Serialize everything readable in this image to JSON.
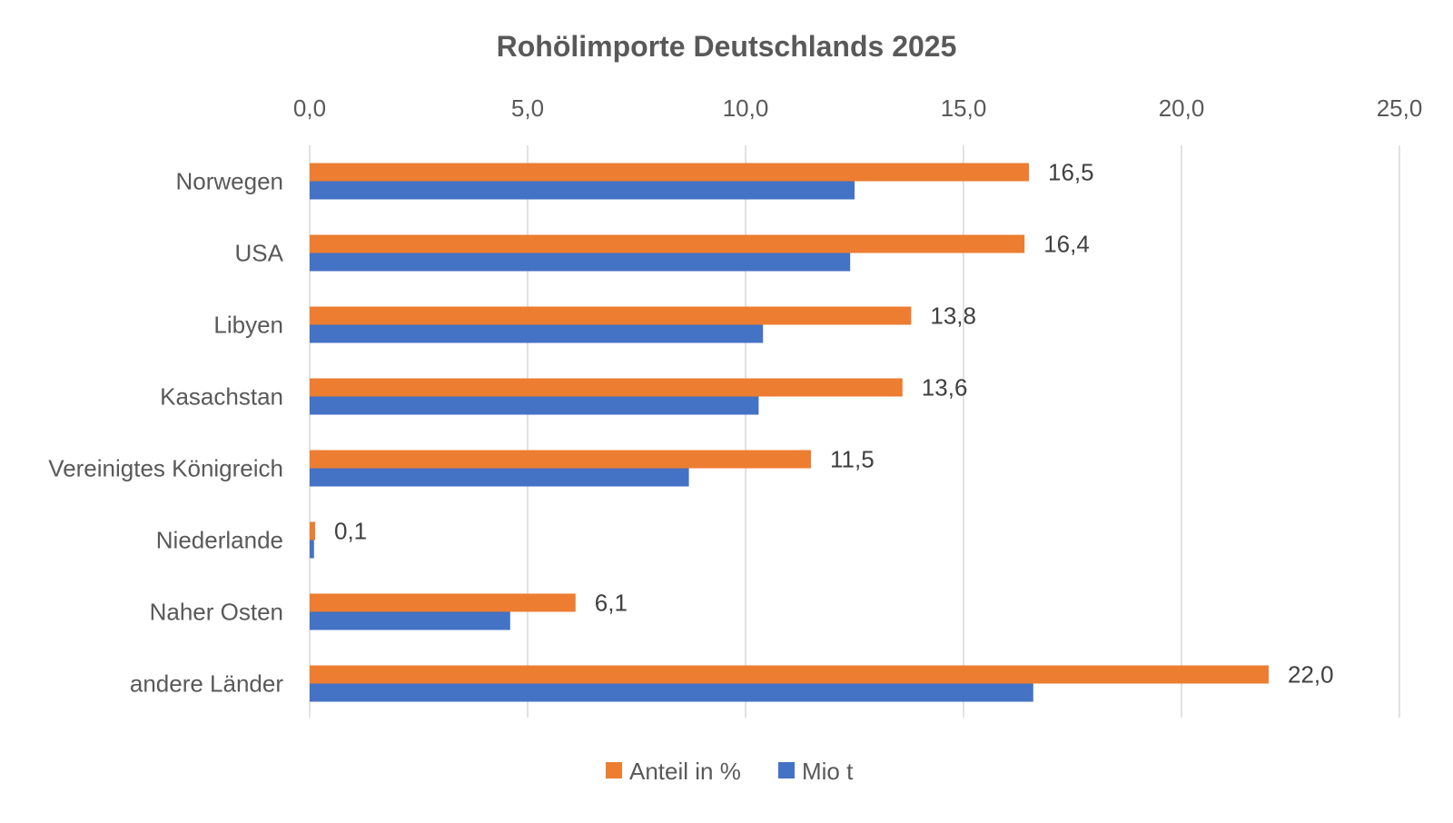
{
  "chart_data": {
    "type": "bar",
    "orientation": "horizontal",
    "title": "Rohölimporte Deutschlands 2025",
    "categories": [
      "Norwegen",
      "USA",
      "Libyen",
      "Kasachstan",
      "Vereinigtes Königreich",
      "Niederlande",
      "Naher Osten",
      "andere Länder"
    ],
    "series": [
      {
        "name": "Anteil in %",
        "color": "#ED7D31",
        "values": [
          16.5,
          16.4,
          13.8,
          13.6,
          11.5,
          0.1,
          6.1,
          22.0
        ],
        "data_labels": [
          "16,5",
          "16,4",
          "13,8",
          "13,6",
          "11,5",
          "0,1",
          "6,1",
          "22,0"
        ]
      },
      {
        "name": "Mio t",
        "color": "#4472C4",
        "values": [
          12.5,
          12.4,
          10.4,
          10.3,
          8.7,
          0.1,
          4.6,
          16.6
        ]
      }
    ],
    "x_axis": {
      "min": 0,
      "max": 25,
      "step": 5,
      "tick_labels": [
        "0,0",
        "5,0",
        "10,0",
        "15,0",
        "20,0",
        "25,0"
      ],
      "position": "top"
    },
    "grid": true,
    "legend": {
      "position": "bottom",
      "entries": [
        "Anteil in %",
        "Mio t"
      ]
    }
  }
}
